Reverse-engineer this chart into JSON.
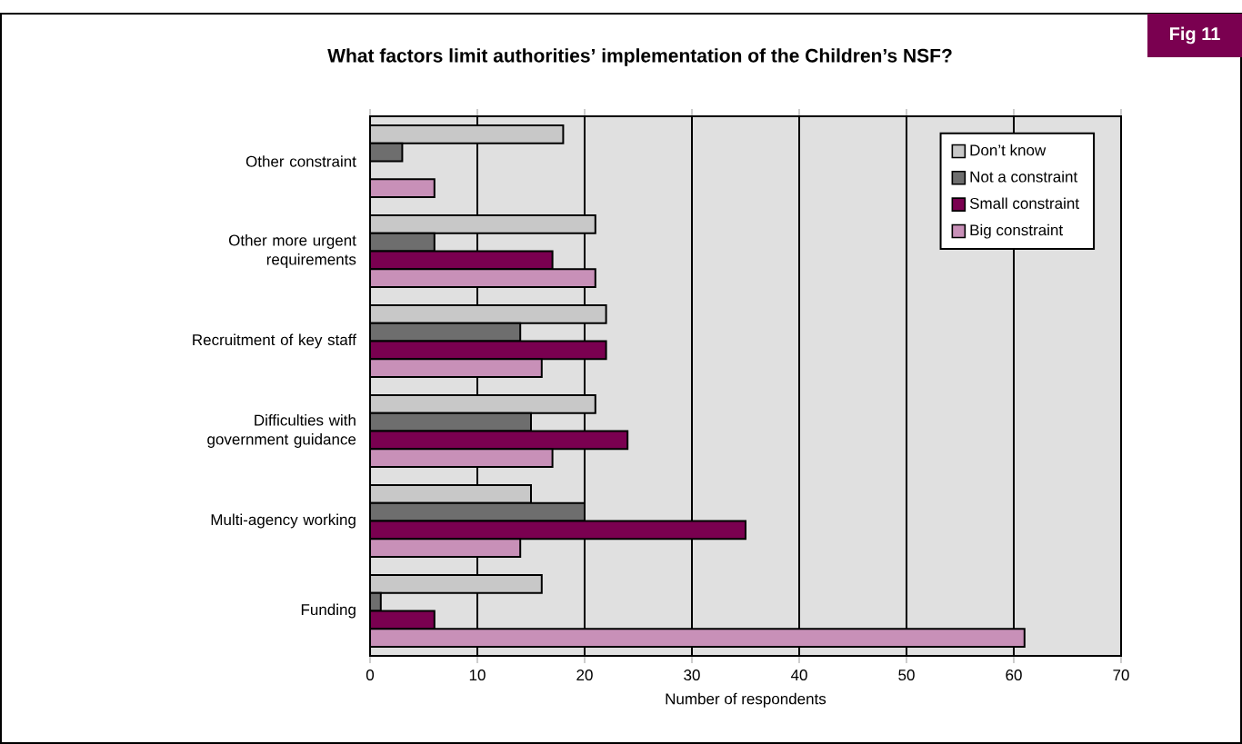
{
  "chart_data": {
    "type": "bar",
    "orientation": "horizontal",
    "title": "What factors limit authorities’ implementation of the Children’s NSF?",
    "xlabel": "Number of respondents",
    "annotations": [
      "Fig 11"
    ],
    "categories": [
      "Other constraint",
      "Other more urgent requirements",
      "Recruitment of key staff",
      "Difficulties with government guidance",
      "Multi-agency working",
      "Funding"
    ],
    "series": [
      {
        "name": "Don’t know",
        "color": "#c8c8c8",
        "values": [
          18,
          21,
          22,
          21,
          15,
          16
        ]
      },
      {
        "name": "Not a constraint",
        "color": "#6e6e6e",
        "values": [
          3,
          6,
          14,
          15,
          20,
          1
        ]
      },
      {
        "name": "Small constraint",
        "color": "#7a0050",
        "values": [
          null,
          17,
          22,
          24,
          35,
          6
        ]
      },
      {
        "name": "Big constraint",
        "color": "#c890b8",
        "values": [
          6,
          21,
          16,
          17,
          14,
          61
        ]
      }
    ],
    "xlim": [
      0,
      70
    ],
    "xticks": [
      0,
      10,
      20,
      30,
      40,
      50,
      60,
      70
    ],
    "grid": "x",
    "legend": "top right"
  }
}
